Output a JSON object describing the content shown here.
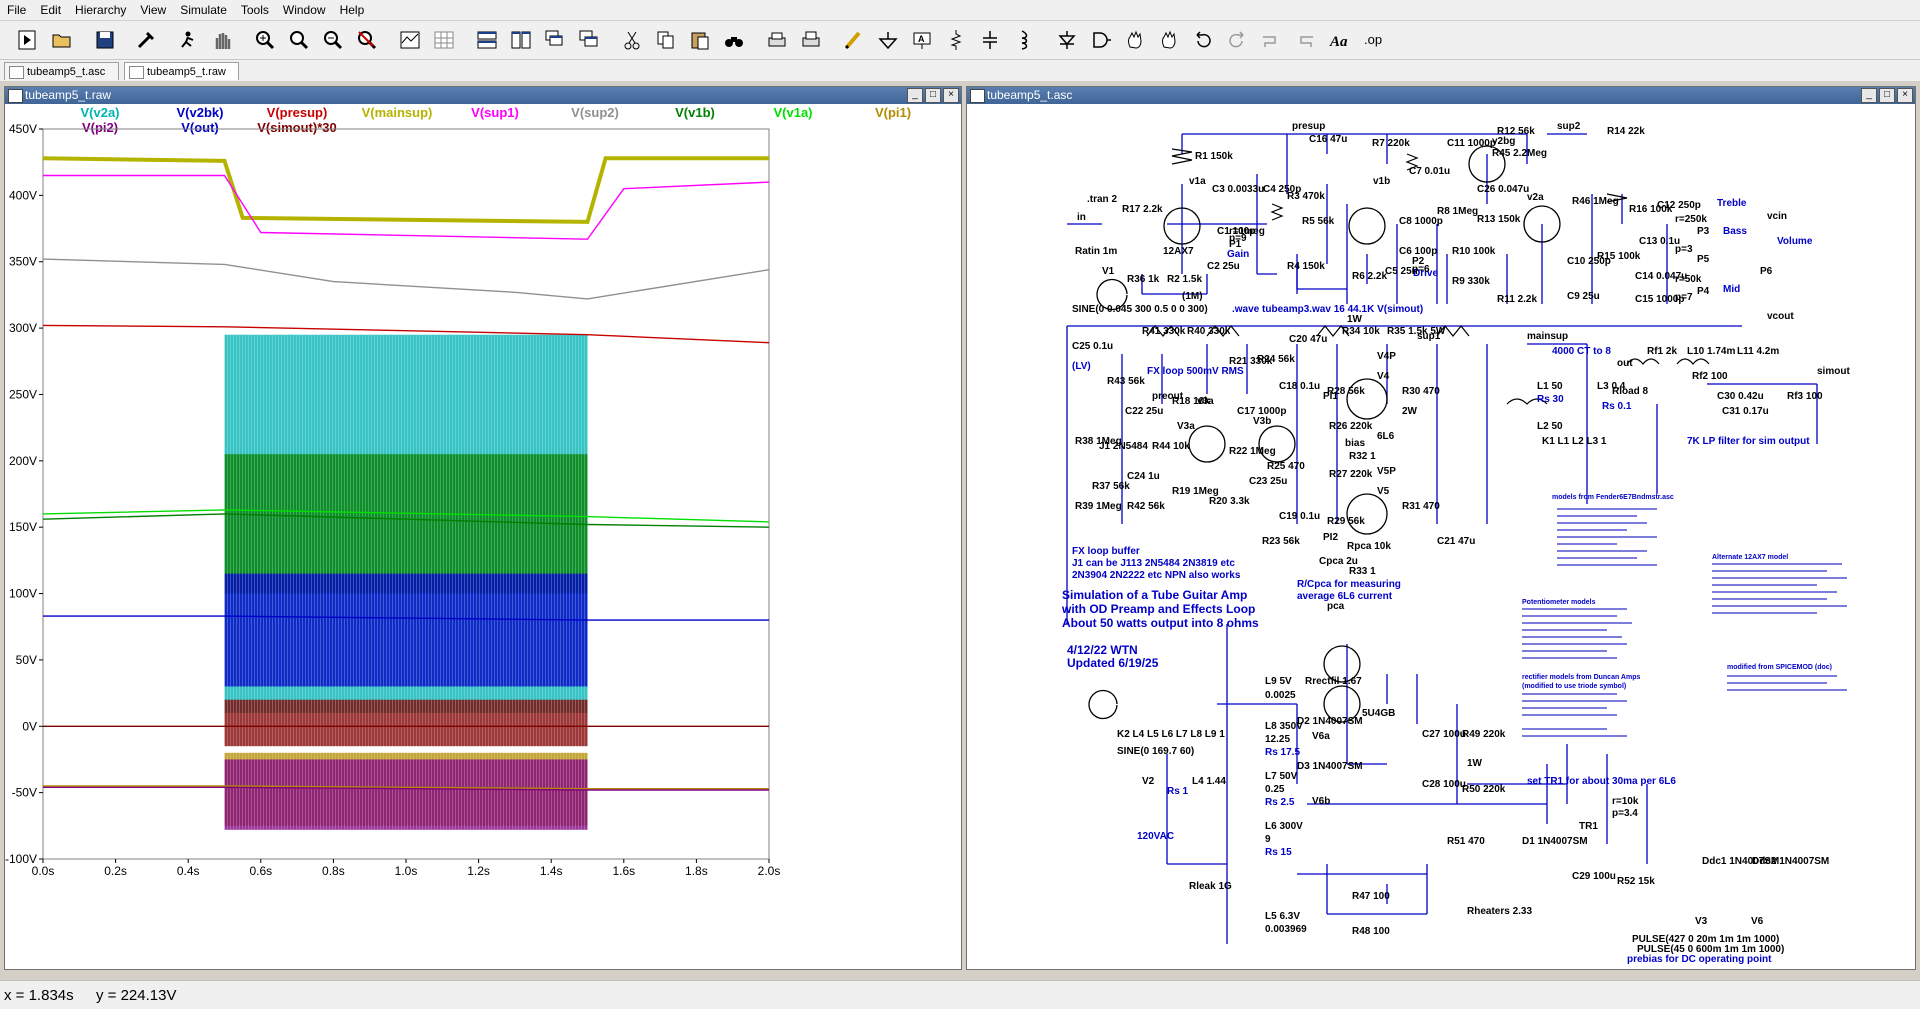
{
  "menu": [
    "File",
    "Edit",
    "Hierarchy",
    "View",
    "Simulate",
    "Tools",
    "Window",
    "Help"
  ],
  "tabs": [
    {
      "label": "tubeamp5_t.asc"
    },
    {
      "label": "tubeamp5_t.raw"
    }
  ],
  "plot_window": {
    "title": "tubeamp5_t.raw"
  },
  "schematic_window": {
    "title": "tubeamp5_t.asc"
  },
  "legend": [
    {
      "label": "V(v2a)",
      "color": "#00b4b4"
    },
    {
      "label": "V(v2bk)",
      "color": "#0000c8"
    },
    {
      "label": "V(presup)",
      "color": "#c80000"
    },
    {
      "label": "V(mainsup)",
      "color": "#b4b400"
    },
    {
      "label": "V(sup1)",
      "color": "#ff00ff"
    },
    {
      "label": "V(sup2)",
      "color": "#909090"
    },
    {
      "label": "V(v1b)",
      "color": "#008000"
    },
    {
      "label": "V(v1a)",
      "color": "#00e000"
    },
    {
      "label": "V(pi1)",
      "color": "#b48c00"
    },
    {
      "label": "V(pi2)",
      "color": "#800080"
    },
    {
      "label": "V(out)",
      "color": "#0000c8"
    },
    {
      "label": "V(simout)*30",
      "color": "#800000"
    }
  ],
  "chart_data": {
    "type": "line",
    "xlim": [
      0,
      2.0
    ],
    "ylim": [
      -100,
      450
    ],
    "y_ticks": [
      "450V",
      "400V",
      "350V",
      "300V",
      "250V",
      "200V",
      "150V",
      "100V",
      "50V",
      "0V",
      "-50V",
      "-100V"
    ],
    "x_ticks": [
      "0.0s",
      "0.2s",
      "0.4s",
      "0.6s",
      "0.8s",
      "1.0s",
      "1.2s",
      "1.4s",
      "1.6s",
      "1.8s",
      "2.0s"
    ],
    "series": [
      {
        "name": "V(mainsup)",
        "x": [
          0,
          0.5,
          0.55,
          1.5,
          1.55,
          2.0
        ],
        "y": [
          428,
          426,
          383,
          380,
          428,
          428
        ]
      },
      {
        "name": "V(sup1)",
        "x": [
          0,
          0.5,
          0.6,
          1.5,
          1.6,
          2.0
        ],
        "y": [
          415,
          415,
          372,
          367,
          405,
          410
        ]
      },
      {
        "name": "V(sup2)",
        "x": [
          0,
          0.5,
          0.8,
          1.3,
          1.5,
          2.0
        ],
        "y": [
          352,
          348,
          335,
          327,
          322,
          344
        ]
      },
      {
        "name": "V(presup)",
        "x": [
          0,
          0.5,
          1.0,
          1.5,
          2.0
        ],
        "y": [
          302,
          301,
          298,
          295,
          289
        ]
      },
      {
        "name": "V(v1a)",
        "x": [
          0,
          0.5,
          1.5,
          2.0
        ],
        "y": [
          160,
          163,
          158,
          154
        ]
      },
      {
        "name": "V(v1b)",
        "x": [
          0,
          0.5,
          1.5,
          2.0
        ],
        "y": [
          156,
          160,
          152,
          150
        ]
      },
      {
        "name": "V(v2bk)",
        "x": [
          0,
          0.5,
          1.5,
          2.0
        ],
        "y": [
          83,
          83,
          80,
          80
        ]
      },
      {
        "name": "V(simout)*30",
        "x": [
          0,
          0.5,
          1.5,
          2.0
        ],
        "y": [
          0,
          0,
          0,
          0
        ]
      },
      {
        "name": "V(pi1)",
        "x": [
          0,
          0.5,
          1.5,
          2.0
        ],
        "y": [
          -45,
          -45,
          -47,
          -47
        ]
      },
      {
        "name": "V(pi2)",
        "x": [
          0,
          0.5,
          1.5,
          2.0
        ],
        "y": [
          -46,
          -46,
          -48,
          -48
        ]
      }
    ],
    "bands": [
      {
        "name": "V(v2a)",
        "x0": 0.5,
        "x1": 1.5,
        "y0": 10,
        "y1": 295
      },
      {
        "name": "V(v1b)",
        "x0": 0.5,
        "x1": 1.5,
        "y0": 100,
        "y1": 205
      },
      {
        "name": "V(v2bk)",
        "x0": 0.5,
        "x1": 1.5,
        "y0": 30,
        "y1": 115
      },
      {
        "name": "V(simout)*30",
        "x0": 0.5,
        "x1": 1.5,
        "y0": -15,
        "y1": 20
      },
      {
        "name": "V(pi1)",
        "x0": 0.5,
        "x1": 1.5,
        "y0": -75,
        "y1": -20
      },
      {
        "name": "V(pi2)",
        "x0": 0.5,
        "x1": 1.5,
        "y0": -78,
        "y1": -25
      }
    ]
  },
  "schematic": {
    "nets": [
      "presup",
      "sup2",
      "v1a",
      "v1b",
      "v2bg",
      "v2a",
      "in",
      "vcin",
      "vcout",
      "sup1",
      "mainsup",
      "out",
      "pca",
      "simout",
      "bias",
      "v3a",
      "PI1",
      "PI2"
    ],
    "tran": ".tran 2",
    "source": "SINE(0 0.045 300 0.5 0 0 300)",
    "wave": ".wave tubeamp3.wav 16 44.1K V(simout)",
    "components_top": [
      "R1 150k",
      "C3 0.0033u",
      "C4 250p",
      "R3 470k",
      "R5 56k",
      "R4 150k",
      "C16 47u",
      "R7 220k",
      "C7 0.01u",
      "C11 1000p",
      "R12 56k",
      "R45 2.2Meg",
      "R14 22k",
      "C26 0.047u",
      "R46 1Meg",
      "R8 1Meg",
      "C8 1000p",
      "C6 100p",
      "R13 150k",
      "R10 100k",
      "R9 330k",
      "R11 2.2k",
      "C10 250p",
      "C9 25u",
      "R16 100k",
      "C12 250p",
      "C13 0.1u",
      "C14 0.047u",
      "C15 1000p",
      "R15 100k",
      "R17 2.2k",
      "R36 1k",
      "R2 1.5k",
      "C2 25u",
      "C1 100p",
      "R6 2.2k",
      "C5 25u",
      "Ratin 1m",
      "V1",
      "12AX7",
      "Gain",
      "Drive",
      "Treble",
      "Bass",
      "Mid",
      "Volume",
      "P1",
      "P2",
      "P3",
      "P4",
      "P5",
      "P6",
      "(1M)",
      "1W",
      "r=1meg",
      "p=9",
      "p=6",
      "r=250k",
      "p=3",
      "r=50k",
      "p=7"
    ],
    "components_mid": [
      "C25 0.1u",
      "(LV)",
      "R41 330k",
      "R40 330k",
      "R43 56k",
      "R38 1Meg",
      "R39 1Meg",
      "FX loop 500mV RMS",
      "preout",
      "C22 25u",
      "J1 2N5484",
      "C24 1u",
      "R37 56k",
      "R42 56k",
      "R44 10k",
      "R18 10k",
      "R19 1Meg",
      "R21 330k",
      "V3a",
      "V3b",
      "C17 1000p",
      "R22 1Meg",
      "R20 3.3k",
      "C23 25u",
      "R24 56k",
      "C18 0.1u",
      "R25 470",
      "C19 0.1u",
      "R23 56k",
      "R26 220k",
      "R27 220k",
      "R28 56k",
      "R29 56k",
      "Rpca 10k",
      "Cpca 2u",
      "C20 47u",
      "R34 10k",
      "R35 1.5k 5W",
      "V4",
      "V5",
      "6L6",
      "R30 470",
      "R31 470",
      "2W",
      "R32 1",
      "R33 1",
      "V4P",
      "V5P",
      "C21 47u",
      "4000 CT to 8",
      "L1 50",
      "L2 50",
      "Rs 30",
      "L3 0.4",
      "Rs 0.1",
      "Rload 8",
      "Rf1 2k",
      "L10 1.74m",
      "L11 4.2m",
      "Rf2 100",
      "C30 0.42u",
      "C31 0.17u",
      "Rf3 100",
      "K1 L1 L2 L3 1"
    ],
    "notes": [
      "FX loop buffer",
      "J1 can be J113 2N5484 2N3819 etc",
      "2N3904 2N2222 etc NPN also works",
      "Simulation of a Tube Guitar Amp",
      "with OD Preamp and Effects Loop",
      "About 50 watts output into 8 ohms",
      "R/Cpca for measuring",
      "average 6L6 current",
      "7K LP filter for sim output",
      "4/12/22 WTN",
      "Updated 6/19/25",
      "models from Fender6E7Bndmstr.asc",
      "Alternate 12AX7 model",
      "Potentiometer models",
      "rectifier models from Duncan Amps",
      "(modified to use triode symbol)",
      "modified from SPICEMOD (doc)",
      "set TR1 for about 30ma per 6L6",
      "prebias for DC operating point"
    ],
    "components_psu": [
      "K2 L4 L5 L6 L7 L8 L9 1",
      "SINE(0 169.7 60)",
      "V2",
      "120VAC",
      "Rs 1",
      "L4 1.44",
      "Rleak 1G",
      "L9 5V",
      "0.0025",
      "Rrectfil 1.67",
      "D2 1N4007SM",
      "D3 1N4007SM",
      "V6a",
      "V6b",
      "5U4GB",
      "L8 350V",
      "12.25",
      "Rs 17.5",
      "L7 50V",
      "0.25",
      "Rs 2.5",
      "L6 300V",
      "9",
      "Rs 15",
      "C27 100u",
      "C28 100u",
      "R49 220k",
      "R50 220k",
      "1W",
      "R51 470",
      "D1 1N4007SM",
      "TR1",
      "r=10k",
      "p=3.4",
      "R52 15k",
      "C29 100u",
      "Ddc1 1N4007SM",
      "Ddc2 1N4007SM",
      "V3",
      "V6",
      "L5 6.3V",
      "0.003969",
      "R47 100",
      "R48 100",
      "Rheaters 2.33",
      "PULSE(427 0 20m 1m 1m 1000)",
      "PULSE(45 0 600m 1m 1m 1000)"
    ]
  },
  "status": {
    "x": "x = 1.834s",
    "y": "y = 224.13V"
  },
  "icons": [
    "new-schematic-icon",
    "open-icon",
    "save-icon",
    "control-panel-icon",
    "run-icon",
    "halt-icon",
    "zoom-in-icon",
    "zoom-pan-icon",
    "zoom-out-icon",
    "zoom-cancel-icon",
    "autorange-icon",
    "grid-icon",
    "tile-horizontal-icon",
    "tile-vertical-icon",
    "cascade-icon",
    "close-all-icon",
    "cut-icon",
    "copy-icon",
    "paste-icon",
    "find-icon",
    "print-icon",
    "print-setup-icon",
    "wire-icon",
    "ground-icon",
    "label-net-icon",
    "resistor-icon",
    "capacitor-icon",
    "inductor-icon",
    "diode-icon",
    "component-icon",
    "move-icon",
    "drag-icon",
    "undo-icon",
    "redo-icon",
    "rotate-icon",
    "mirror-icon",
    "text-icon",
    "spice-directive-icon"
  ]
}
